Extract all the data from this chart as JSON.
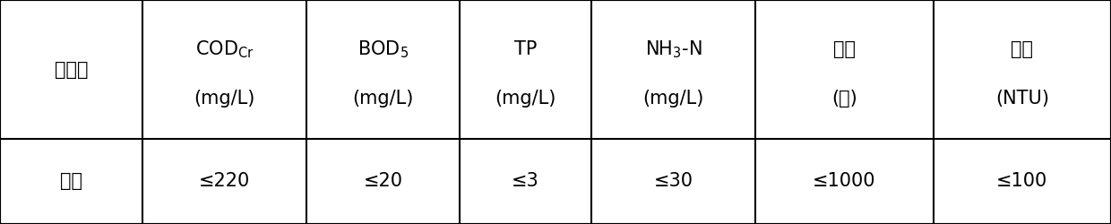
{
  "col_headers_line1": [
    "污染物",
    "COD",
    "BOD",
    "TP",
    "NH",
    "色度",
    "浊度"
  ],
  "col_headers_sub1": [
    "",
    "Cr",
    "5",
    "",
    "3",
    "",
    ""
  ],
  "col_headers_line2": [
    "",
    "(mg/L)",
    "(mg/L)",
    "(mg/L)",
    "(mg/L)",
    "(倍)",
    "(NTU)"
  ],
  "col_headers_suffix": [
    "",
    "",
    "",
    "",
    "-N",
    "",
    ""
  ],
  "row_label": "指标",
  "row_values": [
    "≤220",
    "≤20",
    "≤3",
    "≤30",
    "≤1000",
    "≤100"
  ],
  "bg_color": "#ffffff",
  "border_color": "#000000",
  "text_color": "#000000",
  "font_size_header": 15,
  "font_size_row": 15
}
